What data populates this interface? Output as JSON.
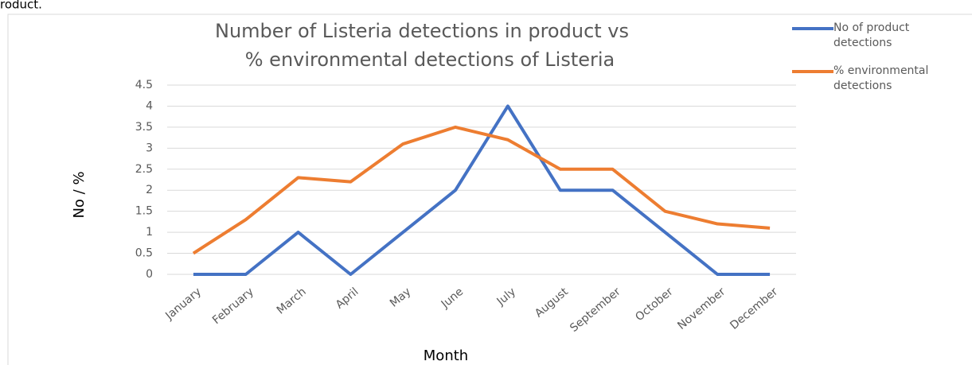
{
  "header_text": "roduct.",
  "chart_data": {
    "type": "line",
    "title_lines": [
      "Number of Listeria detections in product vs",
      "% environmental detections of Listeria"
    ],
    "x_label": "Month",
    "y_label": "No / %",
    "categories": [
      "January",
      "February",
      "March",
      "April",
      "May",
      "June",
      "July",
      "August",
      "September",
      "October",
      "November",
      "December"
    ],
    "series": [
      {
        "name": "No of product detections",
        "color": "#4472c4",
        "values": [
          0,
          0,
          1,
          0,
          1,
          2,
          4,
          2,
          2,
          1,
          0,
          0
        ]
      },
      {
        "name": "% environmental detections",
        "color": "#ed7d31",
        "values": [
          0.5,
          1.3,
          2.3,
          2.2,
          3.1,
          3.5,
          3.2,
          2.5,
          2.5,
          1.5,
          1.2,
          1.1
        ]
      }
    ],
    "ylim": [
      0,
      4.5
    ],
    "yticks": [
      0,
      0.5,
      1,
      1.5,
      2,
      2.5,
      3,
      3.5,
      4,
      4.5
    ],
    "grid": true,
    "legend": "right"
  }
}
